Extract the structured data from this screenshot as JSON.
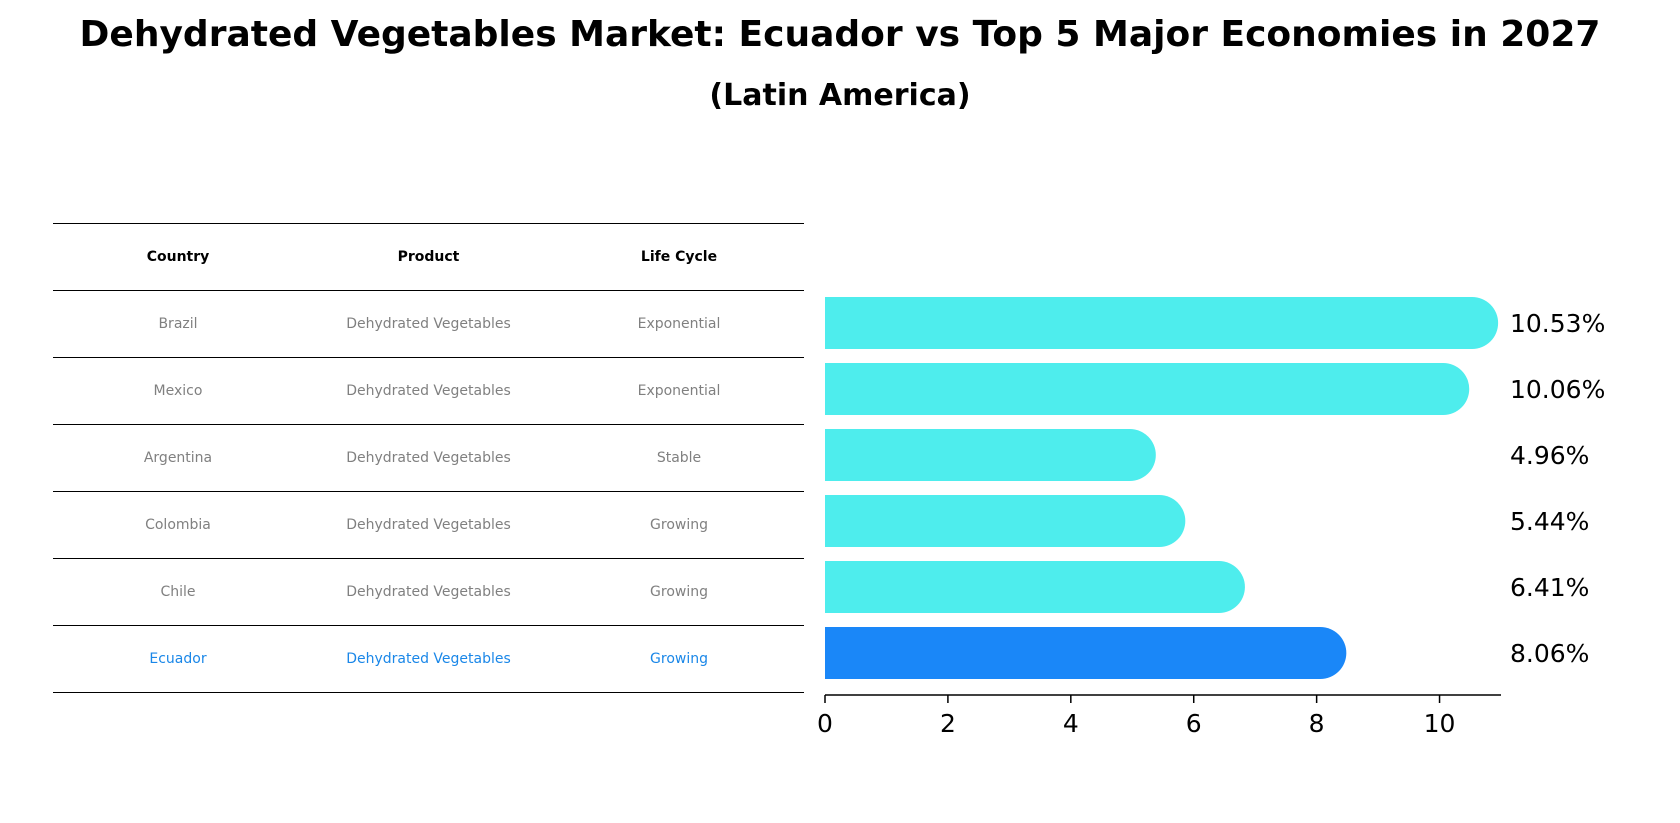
{
  "title": "Dehydrated Vegetables Market: Ecuador vs Top 5 Major Economies in 2027",
  "subtitle": "(Latin America)",
  "table": {
    "headers": [
      "Country",
      "Product",
      "Life Cycle"
    ],
    "rows": [
      {
        "country": "Brazil",
        "product": "Dehydrated Vegetables",
        "life_cycle": "Exponential"
      },
      {
        "country": "Mexico",
        "product": "Dehydrated Vegetables",
        "life_cycle": "Exponential"
      },
      {
        "country": "Argentina",
        "product": "Dehydrated Vegetables",
        "life_cycle": "Stable"
      },
      {
        "country": "Colombia",
        "product": "Dehydrated Vegetables",
        "life_cycle": "Growing"
      },
      {
        "country": "Chile",
        "product": "Dehydrated Vegetables",
        "life_cycle": "Growing"
      },
      {
        "country": "Ecuador",
        "product": "Dehydrated Vegetables",
        "life_cycle": "Growing"
      }
    ]
  },
  "chart_data": {
    "type": "bar",
    "orientation": "horizontal",
    "categories": [
      "Brazil",
      "Mexico",
      "Argentina",
      "Colombia",
      "Chile",
      "Ecuador"
    ],
    "values": [
      10.53,
      10.06,
      4.96,
      5.44,
      6.41,
      8.06
    ],
    "value_labels": [
      "10.53%",
      "10.06%",
      "4.96%",
      "5.44%",
      "6.41%",
      "8.06%"
    ],
    "highlight": "Ecuador",
    "xlim": [
      0,
      11
    ],
    "xticks": [
      0,
      2,
      4,
      6,
      8,
      10
    ],
    "grid": false,
    "colors": {
      "bar": "#4eeded",
      "highlight": "#1a87f8",
      "highlight_text": "#1a87e8",
      "muted_text": "#808080"
    }
  }
}
